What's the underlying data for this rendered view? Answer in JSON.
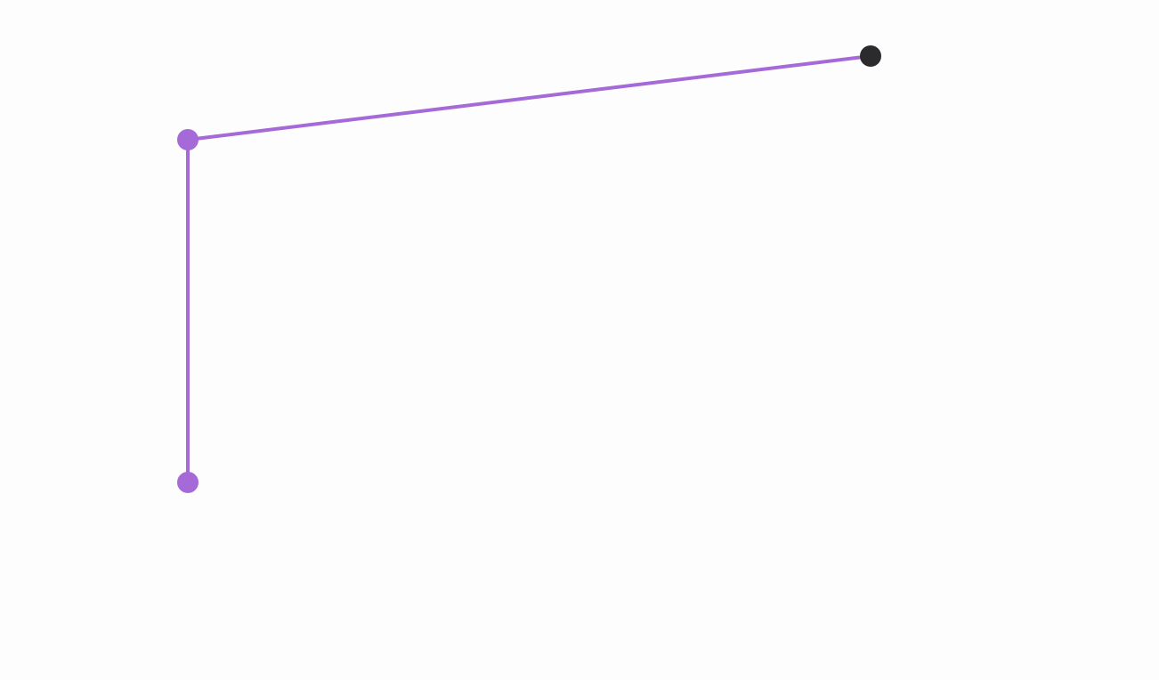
{
  "colors": {
    "background": "#fefdfe",
    "line": "#a56ad8",
    "node_active": "#a56ad8",
    "node_cursor": "#2b2a2d"
  },
  "nodes": [
    {
      "id": "node-bottom",
      "role": "vertex",
      "color_key": "node_active"
    },
    {
      "id": "node-corner",
      "role": "vertex",
      "color_key": "node_active"
    },
    {
      "id": "node-cursor",
      "role": "drag-handle",
      "color_key": "node_cursor"
    }
  ],
  "edges": [
    {
      "id": "edge-vertical",
      "from": "node-bottom",
      "to": "node-corner"
    },
    {
      "id": "edge-diagonal",
      "from": "node-corner",
      "to": "node-cursor"
    }
  ]
}
